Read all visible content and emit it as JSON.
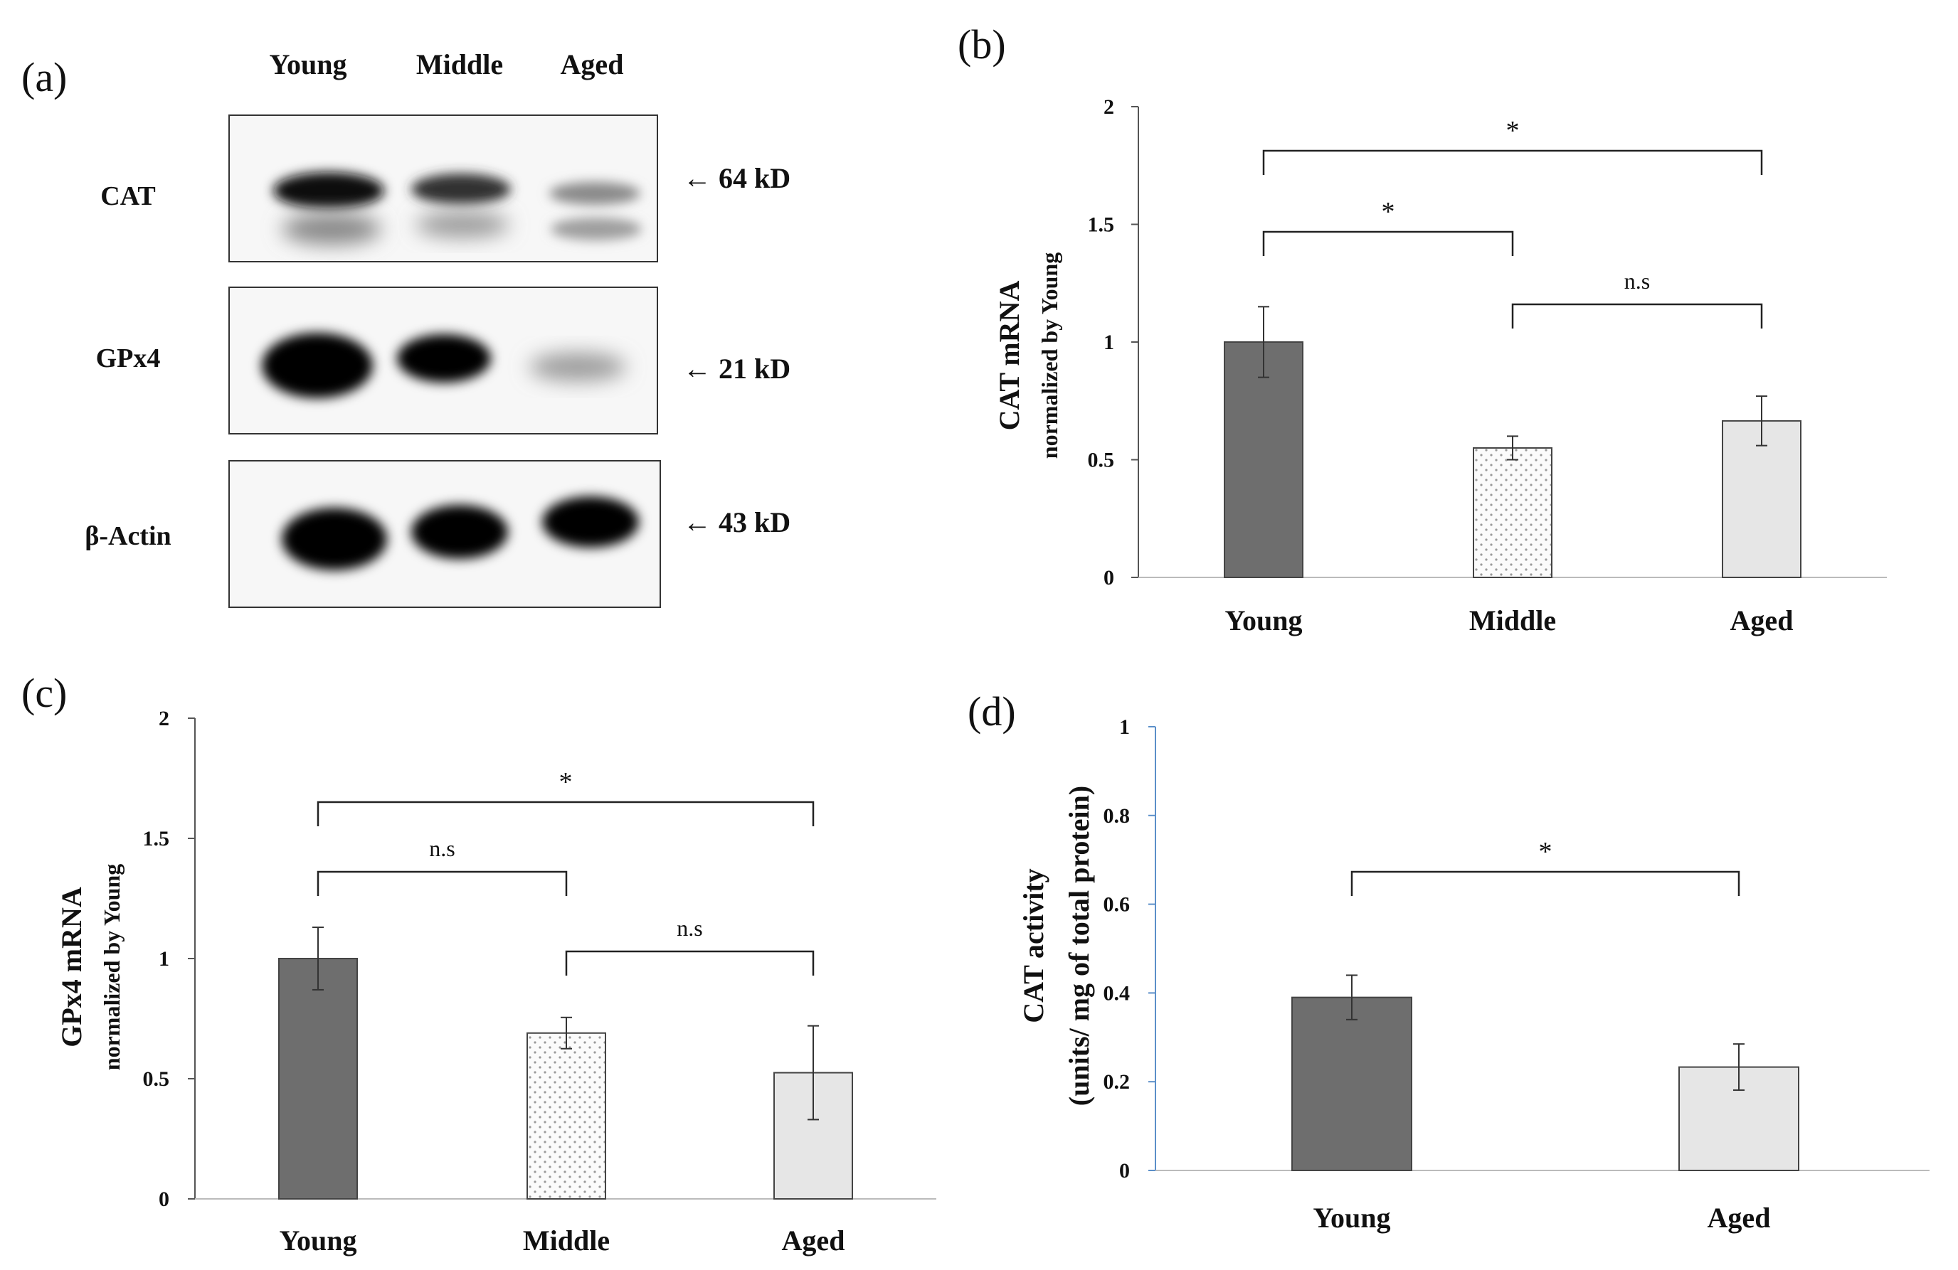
{
  "panels": {
    "a": "(a)",
    "b": "(b)",
    "c": "(c)",
    "d": "(d)"
  },
  "blot": {
    "lanes": [
      "Young",
      "Middle",
      "Aged"
    ],
    "rows": [
      {
        "protein": "CAT",
        "size": "← 64 kD"
      },
      {
        "protein": "GPx4",
        "size": "← 21 kD"
      },
      {
        "protein": "β-Actin",
        "size": "← 43 kD"
      }
    ]
  },
  "colors": {
    "young": "#6e6e6e",
    "middle": "#fbfbfb",
    "aged": "#e6e6e6",
    "axis": "#555555",
    "d_axis": "#5b8fc9"
  },
  "chart_data": [
    {
      "id": "b",
      "type": "bar",
      "categories": [
        "Young",
        "Middle",
        "Aged"
      ],
      "values": [
        1.0,
        0.55,
        0.665
      ],
      "errors": [
        0.15,
        0.05,
        0.105
      ],
      "ylim": [
        0,
        2
      ],
      "yticks": [
        "0",
        "0.5",
        "1",
        "1.5",
        "2"
      ],
      "ylabel": "CAT mRNA",
      "ylabel2": "normalized by Young",
      "brackets": [
        {
          "from": 0,
          "to": 2,
          "label": "*"
        },
        {
          "from": 0,
          "to": 1,
          "label": "*"
        },
        {
          "from": 1,
          "to": 2,
          "label": "n.s"
        }
      ]
    },
    {
      "id": "c",
      "type": "bar",
      "categories": [
        "Young",
        "Middle",
        "Aged"
      ],
      "values": [
        1.0,
        0.69,
        0.525
      ],
      "errors": [
        0.13,
        0.065,
        0.195
      ],
      "ylim": [
        0,
        2
      ],
      "yticks": [
        "0",
        "0.5",
        "1",
        "1.5",
        "2"
      ],
      "ylabel": "GPx4 mRNA",
      "ylabel2": "normalized by Young",
      "brackets": [
        {
          "from": 0,
          "to": 2,
          "label": "*"
        },
        {
          "from": 0,
          "to": 1,
          "label": "n.s"
        },
        {
          "from": 1,
          "to": 2,
          "label": "n.s"
        }
      ]
    },
    {
      "id": "d",
      "type": "bar",
      "categories": [
        "Young",
        "Aged"
      ],
      "values": [
        0.39,
        0.233
      ],
      "errors": [
        0.05,
        0.052
      ],
      "ylim": [
        0,
        1
      ],
      "yticks": [
        "0",
        "0.2",
        "0.4",
        "0.6",
        "0.8",
        "1"
      ],
      "ylabel": "CAT activity",
      "ylabel2": "(units/ mg of  total protein)",
      "brackets": [
        {
          "from": 0,
          "to": 1,
          "label": "*"
        }
      ]
    }
  ]
}
